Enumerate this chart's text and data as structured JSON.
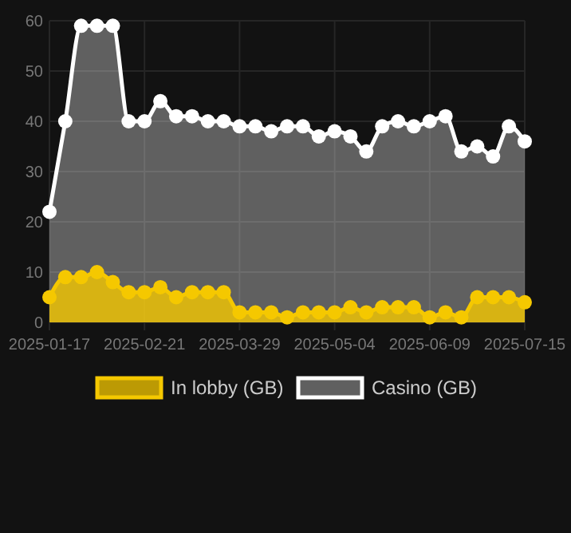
{
  "chart_data": {
    "type": "area",
    "categories": [
      "2025-01-17",
      null,
      null,
      null,
      null,
      null,
      "2025-02-21",
      null,
      null,
      null,
      null,
      null,
      "2025-03-29",
      null,
      null,
      null,
      null,
      null,
      "2025-05-04",
      null,
      null,
      null,
      null,
      null,
      "2025-06-09",
      null,
      null,
      null,
      null,
      null,
      "2025-07-15"
    ],
    "series": [
      {
        "name": "In lobby (GB)",
        "color": "#f5c800",
        "values": [
          5,
          9,
          9,
          10,
          8,
          6,
          6,
          7,
          5,
          6,
          6,
          6,
          2,
          2,
          2,
          1,
          2,
          2,
          2,
          3,
          2,
          3,
          3,
          3,
          1,
          2,
          1,
          5,
          5,
          5,
          4
        ]
      },
      {
        "name": "Casino (GB)",
        "color": "#ffffff",
        "values": [
          22,
          40,
          59,
          59,
          59,
          40,
          40,
          44,
          41,
          41,
          40,
          40,
          39,
          39,
          38,
          39,
          39,
          37,
          38,
          37,
          34,
          39,
          40,
          39,
          40,
          41,
          34,
          35,
          33,
          39,
          36
        ]
      }
    ],
    "ylim": [
      0,
      60
    ],
    "yticks": [
      0,
      10,
      20,
      30,
      40,
      50,
      60
    ],
    "grid": true,
    "legend": "bottom",
    "marker": "circle"
  }
}
